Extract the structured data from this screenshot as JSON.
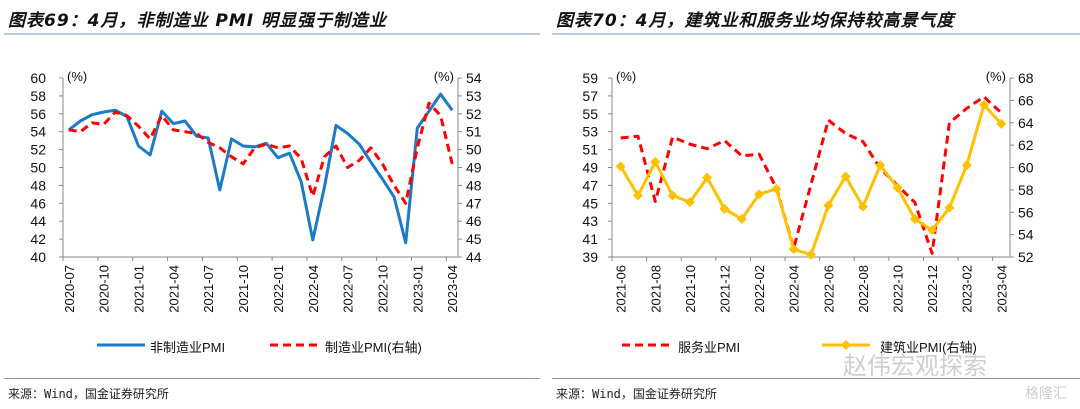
{
  "left": {
    "title": "图表69：4月，非制造业 PMI 明显强于制造业",
    "source": "来源：Wind，国金证券研究所"
  },
  "right": {
    "title": "图表70：4月，建筑业和服务业均保持较高景气度",
    "source": "来源：Wind，国金证券研究所"
  },
  "watermark": {
    "wechat": "赵伟宏观探索",
    "site": "格隆汇"
  },
  "colors": {
    "blue": "#1b7bc8",
    "red": "#ff0000",
    "yellow": "#ffc000",
    "rule": "#b8cde0"
  },
  "chart_data": [
    {
      "type": "line",
      "categories": [
        "2020-07",
        "2020-08",
        "2020-09",
        "2020-10",
        "2020-11",
        "2020-12",
        "2021-01",
        "2021-02",
        "2021-03",
        "2021-04",
        "2021-05",
        "2021-06",
        "2021-07",
        "2021-08",
        "2021-09",
        "2021-10",
        "2021-11",
        "2021-12",
        "2022-01",
        "2022-02",
        "2022-03",
        "2022-04",
        "2022-05",
        "2022-06",
        "2022-07",
        "2022-08",
        "2022-09",
        "2022-10",
        "2022-11",
        "2022-12",
        "2023-01",
        "2023-02",
        "2023-03",
        "2023-04"
      ],
      "tick_labels": [
        "2020-07",
        "2020-10",
        "2021-01",
        "2021-04",
        "2021-07",
        "2021-10",
        "2022-01",
        "2022-04",
        "2022-07",
        "2022-10",
        "2023-01",
        "2023-04"
      ],
      "left_axis": {
        "unit": "(%)",
        "range": [
          40,
          60
        ],
        "ticks": [
          "40",
          "42",
          "44",
          "46",
          "48",
          "50",
          "52",
          "54",
          "56",
          "58",
          "60"
        ]
      },
      "right_axis": {
        "unit": "(%)",
        "range": [
          44,
          54
        ],
        "ticks": [
          "44",
          "45",
          "46",
          "47",
          "48",
          "49",
          "50",
          "51",
          "52",
          "53",
          "54"
        ]
      },
      "series": [
        {
          "name": "非制造业PMI",
          "axis": "left",
          "style": "solid",
          "color": "#1b7bc8",
          "values": [
            54.2,
            55.2,
            55.9,
            56.2,
            56.4,
            55.7,
            52.4,
            51.4,
            56.3,
            54.9,
            55.2,
            53.5,
            53.3,
            47.5,
            53.2,
            52.4,
            52.3,
            52.7,
            51.1,
            51.6,
            48.4,
            41.9,
            47.8,
            54.7,
            53.8,
            52.6,
            50.6,
            48.7,
            46.7,
            41.6,
            54.4,
            56.3,
            58.2,
            56.4
          ]
        },
        {
          "name": "制造业PMI(右轴)",
          "axis": "right",
          "style": "dashed",
          "color": "#ff0000",
          "values": [
            51.1,
            51.0,
            51.5,
            51.4,
            52.1,
            51.9,
            51.3,
            50.6,
            51.9,
            51.1,
            51.0,
            50.9,
            50.4,
            50.1,
            49.6,
            49.2,
            50.1,
            50.3,
            50.1,
            50.2,
            49.5,
            47.4,
            49.6,
            50.2,
            49.0,
            49.4,
            50.1,
            49.2,
            48.0,
            47.0,
            50.1,
            52.6,
            51.9,
            49.2
          ]
        }
      ],
      "legend": "bottom"
    },
    {
      "type": "line",
      "categories": [
        "2021-06",
        "2021-07",
        "2021-08",
        "2021-09",
        "2021-10",
        "2021-11",
        "2021-12",
        "2022-01",
        "2022-02",
        "2022-03",
        "2022-04",
        "2022-05",
        "2022-06",
        "2022-07",
        "2022-08",
        "2022-09",
        "2022-10",
        "2022-11",
        "2022-12",
        "2023-01",
        "2023-02",
        "2023-03",
        "2023-04"
      ],
      "tick_labels": [
        "2021-06",
        "2021-08",
        "2021-10",
        "2021-12",
        "2022-02",
        "2022-04",
        "2022-06",
        "2022-08",
        "2022-10",
        "2022-12",
        "2023-02",
        "2023-04"
      ],
      "left_axis": {
        "unit": "(%)",
        "range": [
          39,
          59
        ],
        "ticks": [
          "39",
          "41",
          "43",
          "45",
          "47",
          "49",
          "51",
          "53",
          "55",
          "57",
          "59"
        ]
      },
      "right_axis": {
        "unit": "(%)",
        "range": [
          52,
          68
        ],
        "ticks": [
          "52",
          "54",
          "56",
          "58",
          "60",
          "62",
          "64",
          "66",
          "68"
        ]
      },
      "series": [
        {
          "name": "服务业PMI",
          "axis": "left",
          "style": "dashed",
          "color": "#ff0000",
          "values": [
            52.3,
            52.5,
            45.2,
            52.4,
            51.6,
            51.1,
            52.0,
            50.3,
            50.5,
            46.7,
            40.0,
            47.1,
            54.3,
            52.8,
            51.9,
            48.9,
            47.0,
            45.1,
            39.4,
            54.0,
            55.6,
            56.9,
            55.1
          ]
        },
        {
          "name": "建筑业PMI(右轴)",
          "axis": "right",
          "style": "solid-diamond",
          "color": "#ffc000",
          "values": [
            60.1,
            57.5,
            60.5,
            57.5,
            56.9,
            59.1,
            56.3,
            55.4,
            57.6,
            58.1,
            52.7,
            52.2,
            56.6,
            59.2,
            56.5,
            60.2,
            58.2,
            55.4,
            54.4,
            56.4,
            60.2,
            65.6,
            63.9
          ]
        }
      ],
      "legend": "bottom"
    }
  ]
}
